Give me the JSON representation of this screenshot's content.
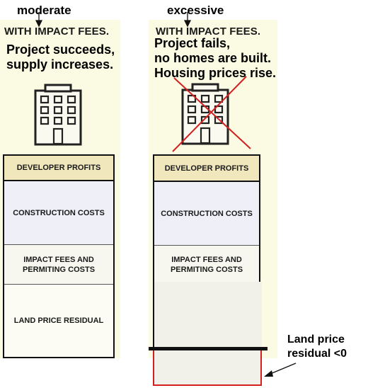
{
  "labels": {
    "left_level": "moderate",
    "right_level": "excessive",
    "left_title": "WITH IMPACT FEES.",
    "right_title": "WITH IMPACT FEES.",
    "left_desc": [
      "Project succeeds,",
      "supply increases."
    ],
    "right_desc": [
      "Project fails,",
      "no homes are built.",
      "Housing prices rise."
    ]
  },
  "left_stack": {
    "developer_profits": "DEVELOPER PROFITS",
    "construction_costs": "CONSTRUCTION COSTS",
    "impact_fees": [
      "IMPACT FEES AND",
      "PERMITING COSTS"
    ],
    "land_price": "LAND PRICE RESIDUAL"
  },
  "right_stack": {
    "developer_profits": "DEVELOPER PROFITS",
    "construction_costs": "CONSTRUCTION COSTS",
    "impact_fees": [
      "IMPACT FEES AND",
      "PERMITING COSTS"
    ]
  },
  "annotation": [
    "Land price",
    "residual <0"
  ],
  "colors": {
    "panel_bg": "#fbfbe3",
    "profit_fill": "#f1e7bd",
    "cost_fill": "#eeeff7",
    "cross": "#d31f1f",
    "negative_box": "#d31f1f"
  }
}
